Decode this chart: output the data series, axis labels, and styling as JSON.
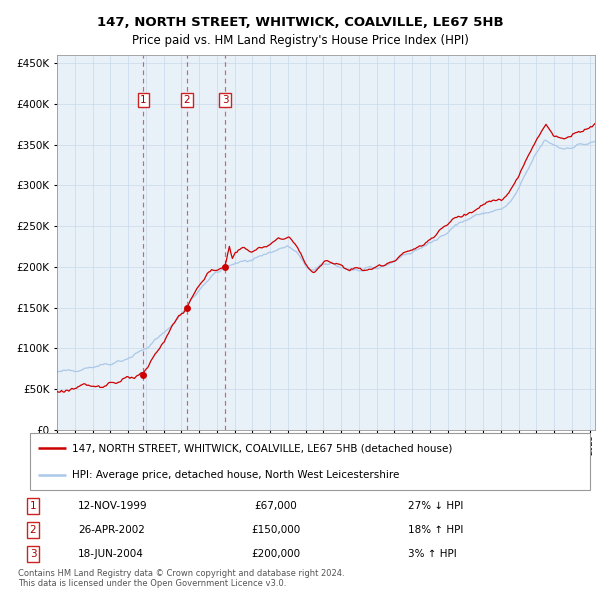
{
  "title1": "147, NORTH STREET, WHITWICK, COALVILLE, LE67 5HB",
  "title2": "Price paid vs. HM Land Registry's House Price Index (HPI)",
  "legend1": "147, NORTH STREET, WHITWICK, COALVILLE, LE67 5HB (detached house)",
  "legend2": "HPI: Average price, detached house, North West Leicestershire",
  "footer1": "Contains HM Land Registry data © Crown copyright and database right 2024.",
  "footer2": "This data is licensed under the Open Government Licence v3.0.",
  "trans_years": [
    1999.87,
    2002.32,
    2004.46
  ],
  "trans_prices": [
    67000,
    150000,
    200000
  ],
  "trans_labels": [
    "1",
    "2",
    "3"
  ],
  "trans_dates": [
    "12-NOV-1999",
    "26-APR-2002",
    "18-JUN-2004"
  ],
  "trans_price_strs": [
    "£67,000",
    "£150,000",
    "£200,000"
  ],
  "trans_hpi_strs": [
    "27% ↓ HPI",
    "18% ↑ HPI",
    "3% ↑ HPI"
  ],
  "hpi_color": "#aac8e8",
  "price_color": "#cc0000",
  "dashed_color": "#e06060",
  "bg_color": "#e8f0f8",
  "grid_color": "#c8d8ec",
  "ylim": [
    0,
    460000
  ],
  "xlim_start": 1995.0,
  "xlim_end": 2025.3
}
